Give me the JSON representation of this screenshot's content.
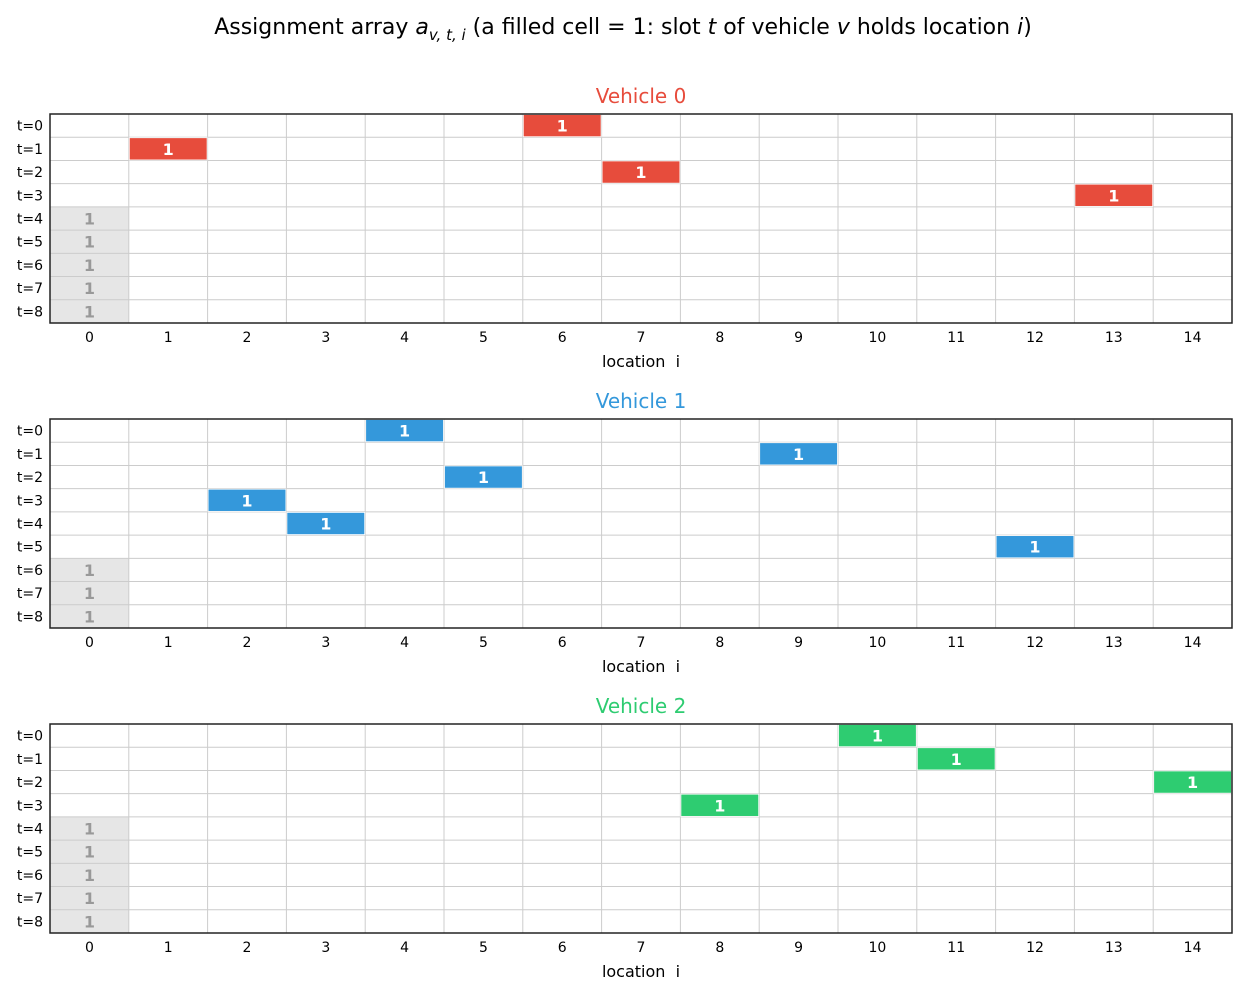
{
  "figure": {
    "title_parts": {
      "prefix": "Assignment array ",
      "a": "a",
      "subscript": "v, t, i",
      "mid1": "  (a filled cell = 1: slot ",
      "t": "t",
      "mid2": " of vehicle ",
      "v": "v",
      "mid3": " holds location ",
      "i": "i",
      "suffix": ")"
    }
  },
  "chart_data": [
    {
      "type": "heatmap",
      "title": "Vehicle 0",
      "title_color": "#e74c3c",
      "cell_color": "#e74c3c",
      "depot_color": "#e6e6e6",
      "depot_text_color": "#999999",
      "cell_label": "1",
      "xlabel": "location  i",
      "x_ticks": [
        "0",
        "1",
        "2",
        "3",
        "4",
        "5",
        "6",
        "7",
        "8",
        "9",
        "10",
        "11",
        "12",
        "13",
        "14"
      ],
      "y_ticks": [
        "t=0",
        "t=1",
        "t=2",
        "t=3",
        "t=4",
        "t=5",
        "t=6",
        "t=7",
        "t=8"
      ],
      "assignments": [
        {
          "t": 0,
          "i": 6
        },
        {
          "t": 1,
          "i": 1
        },
        {
          "t": 2,
          "i": 7
        },
        {
          "t": 3,
          "i": 13
        }
      ],
      "depot_fill": [
        {
          "t": 4,
          "i": 0
        },
        {
          "t": 5,
          "i": 0
        },
        {
          "t": 6,
          "i": 0
        },
        {
          "t": 7,
          "i": 0
        },
        {
          "t": 8,
          "i": 0
        }
      ]
    },
    {
      "type": "heatmap",
      "title": "Vehicle 1",
      "title_color": "#3498db",
      "cell_color": "#3498db",
      "depot_color": "#e6e6e6",
      "depot_text_color": "#999999",
      "cell_label": "1",
      "xlabel": "location  i",
      "x_ticks": [
        "0",
        "1",
        "2",
        "3",
        "4",
        "5",
        "6",
        "7",
        "8",
        "9",
        "10",
        "11",
        "12",
        "13",
        "14"
      ],
      "y_ticks": [
        "t=0",
        "t=1",
        "t=2",
        "t=3",
        "t=4",
        "t=5",
        "t=6",
        "t=7",
        "t=8"
      ],
      "assignments": [
        {
          "t": 0,
          "i": 4
        },
        {
          "t": 1,
          "i": 9
        },
        {
          "t": 2,
          "i": 5
        },
        {
          "t": 3,
          "i": 2
        },
        {
          "t": 4,
          "i": 3
        },
        {
          "t": 5,
          "i": 12
        }
      ],
      "depot_fill": [
        {
          "t": 6,
          "i": 0
        },
        {
          "t": 7,
          "i": 0
        },
        {
          "t": 8,
          "i": 0
        }
      ]
    },
    {
      "type": "heatmap",
      "title": "Vehicle 2",
      "title_color": "#2ecc71",
      "cell_color": "#2ecc71",
      "depot_color": "#e6e6e6",
      "depot_text_color": "#999999",
      "cell_label": "1",
      "xlabel": "location  i",
      "x_ticks": [
        "0",
        "1",
        "2",
        "3",
        "4",
        "5",
        "6",
        "7",
        "8",
        "9",
        "10",
        "11",
        "12",
        "13",
        "14"
      ],
      "y_ticks": [
        "t=0",
        "t=1",
        "t=2",
        "t=3",
        "t=4",
        "t=5",
        "t=6",
        "t=7",
        "t=8"
      ],
      "assignments": [
        {
          "t": 0,
          "i": 10
        },
        {
          "t": 1,
          "i": 11
        },
        {
          "t": 2,
          "i": 14
        },
        {
          "t": 3,
          "i": 8
        }
      ],
      "depot_fill": [
        {
          "t": 4,
          "i": 0
        },
        {
          "t": 5,
          "i": 0
        },
        {
          "t": 6,
          "i": 0
        },
        {
          "t": 7,
          "i": 0
        },
        {
          "t": 8,
          "i": 0
        }
      ]
    }
  ]
}
